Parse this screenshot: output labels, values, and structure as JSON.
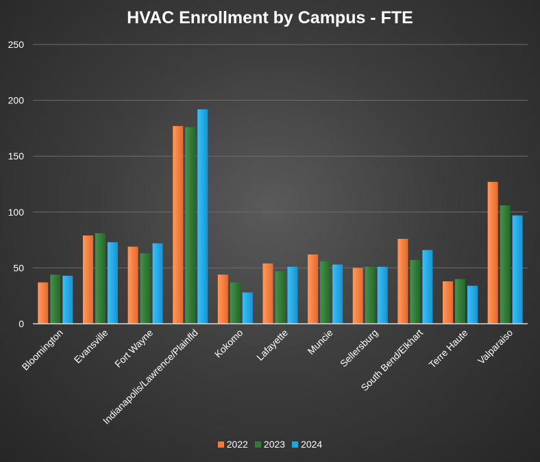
{
  "chart_data": {
    "type": "bar",
    "title": "HVAC Enrollment by Campus - FTE",
    "xlabel": "",
    "ylabel": "",
    "ylim": [
      0,
      250
    ],
    "yticks": [
      0,
      50,
      100,
      150,
      200,
      250
    ],
    "grid": true,
    "legend_position": "bottom",
    "categories": [
      "Bloomington",
      "Evansville",
      "Fort Wayne",
      "Indianapolis/Lawrence/Plainfld",
      "Kokomo",
      "Lafayette",
      "Muncie",
      "Sellersburg",
      "South Bend/Elkhart",
      "Terre Haute",
      "Valparaiso"
    ],
    "series": [
      {
        "name": "2022",
        "color": "#f47b3b",
        "values": [
          37,
          79,
          69,
          177,
          44,
          54,
          62,
          50,
          76,
          38,
          127
        ]
      },
      {
        "name": "2023",
        "color": "#2e7d32",
        "values": [
          44,
          81,
          63,
          176,
          37,
          47,
          56,
          51,
          57,
          40,
          106
        ]
      },
      {
        "name": "2024",
        "color": "#1ba7e6",
        "values": [
          43,
          73,
          72,
          192,
          28,
          51,
          53,
          51,
          66,
          34,
          97
        ]
      }
    ]
  }
}
